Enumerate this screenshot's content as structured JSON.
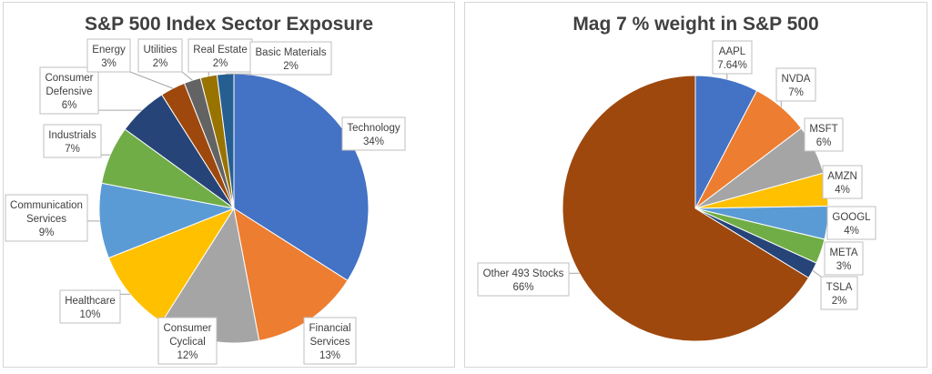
{
  "stray_mark": "¤",
  "chart_data": [
    {
      "type": "pie",
      "title": "S&P 500 Index Sector Exposure",
      "series": [
        {
          "label_lines": [
            "Technology",
            "34%"
          ],
          "value": 34,
          "color": "#4472c4"
        },
        {
          "label_lines": [
            "Financial",
            "Services",
            "13%"
          ],
          "value": 13,
          "color": "#ed7d31"
        },
        {
          "label_lines": [
            "Consumer",
            "Cyclical",
            "12%"
          ],
          "value": 12,
          "color": "#a5a5a5"
        },
        {
          "label_lines": [
            "Healthcare",
            "10%"
          ],
          "value": 10,
          "color": "#ffc000"
        },
        {
          "label_lines": [
            "Communication",
            "Services",
            "9%"
          ],
          "value": 9,
          "color": "#5b9bd5"
        },
        {
          "label_lines": [
            "Industrials",
            "7%"
          ],
          "value": 7,
          "color": "#70ad47"
        },
        {
          "label_lines": [
            "Consumer",
            "Defensive",
            "6%"
          ],
          "value": 6,
          "color": "#264478"
        },
        {
          "label_lines": [
            "Energy",
            "3%"
          ],
          "value": 3,
          "color": "#9e480e"
        },
        {
          "label_lines": [
            "Utilities",
            "2%"
          ],
          "value": 2,
          "color": "#636363"
        },
        {
          "label_lines": [
            "Real Estate",
            "2%"
          ],
          "value": 2,
          "color": "#997300"
        },
        {
          "label_lines": [
            "Basic Materials",
            "2%"
          ],
          "value": 2,
          "color": "#255e91"
        }
      ]
    },
    {
      "type": "pie",
      "title": "Mag 7 % weight in S&P 500",
      "series": [
        {
          "label_lines": [
            "AAPL",
            "7.64%"
          ],
          "value": 7.64,
          "color": "#4472c4"
        },
        {
          "label_lines": [
            "NVDA",
            "7%"
          ],
          "value": 7,
          "color": "#ed7d31"
        },
        {
          "label_lines": [
            "MSFT",
            "6%"
          ],
          "value": 6,
          "color": "#a5a5a5"
        },
        {
          "label_lines": [
            "AMZN",
            "4%"
          ],
          "value": 4,
          "color": "#ffc000"
        },
        {
          "label_lines": [
            "GOOGL",
            "4%"
          ],
          "value": 4,
          "color": "#5b9bd5"
        },
        {
          "label_lines": [
            "META",
            "3%"
          ],
          "value": 3,
          "color": "#70ad47"
        },
        {
          "label_lines": [
            "TSLA",
            "2%"
          ],
          "value": 2,
          "color": "#264478"
        },
        {
          "label_lines": [
            "Other 493 Stocks",
            "66%"
          ],
          "value": 66,
          "color": "#9e480e"
        }
      ]
    }
  ]
}
